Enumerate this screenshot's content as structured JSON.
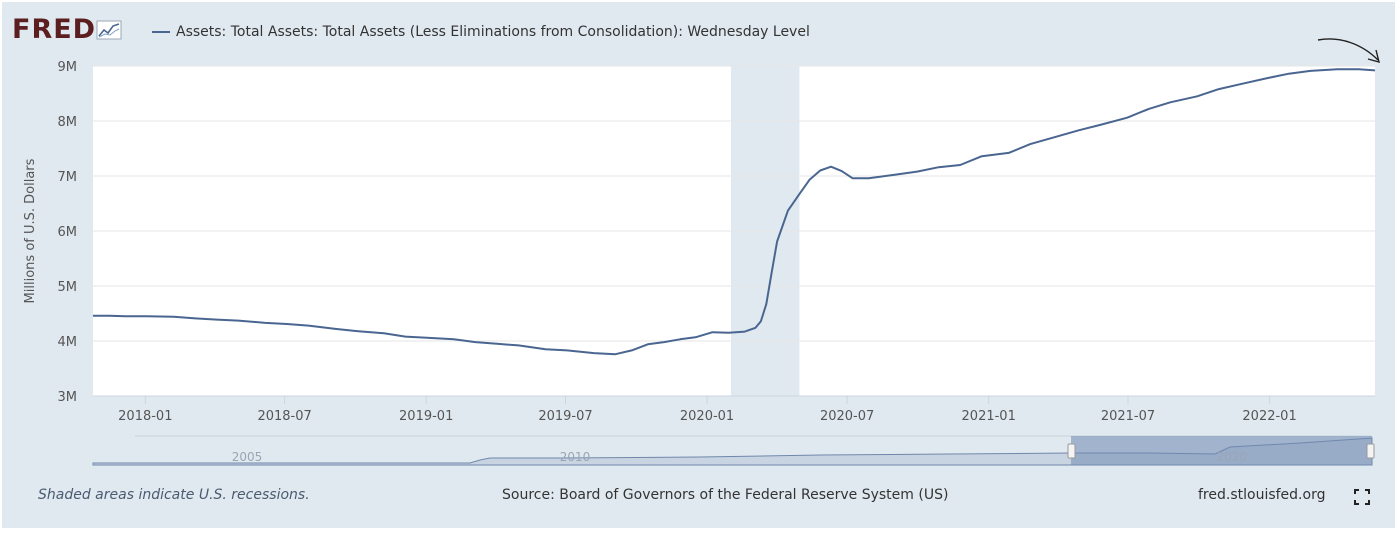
{
  "header": {
    "logo": "FRED",
    "series_title": "Assets: Total Assets: Total Assets (Less Eliminations from Consolidation): Wednesday Level"
  },
  "footer": {
    "note": "Shaded areas indicate U.S. recessions.",
    "source": "Source: Board of Governors of the Federal Reserve System (US)",
    "site": "fred.stlouisfed.org"
  },
  "icons": {
    "logo_chart": "line-chart-icon",
    "fullscreen": "expand-icon",
    "annotation": "hand-drawn-arrow"
  },
  "colors": {
    "line": "#4a6690",
    "recession": "#e1e9f0",
    "frame": "#e1e9f0",
    "logo": "#5b1f1f"
  },
  "chart_data": {
    "type": "line",
    "title": "",
    "ylabel": "Millions of U.S. Dollars",
    "xlabel": "",
    "ylim": [
      3,
      9
    ],
    "yunit": "M",
    "ytick_labels": [
      "3M",
      "4M",
      "5M",
      "6M",
      "7M",
      "8M",
      "9M"
    ],
    "yticks": [
      3,
      4,
      5,
      6,
      7,
      8,
      9
    ],
    "xrange": [
      "2017-10-25",
      "2022-05-18"
    ],
    "xticks": [
      "2018-01",
      "2018-07",
      "2019-01",
      "2019-07",
      "2020-01",
      "2020-07",
      "2021-01",
      "2021-07",
      "2022-01"
    ],
    "grid": true,
    "legend": "top-left",
    "recessions": [
      {
        "start": "2020-02-01",
        "end": "2020-04-30"
      }
    ],
    "series": [
      {
        "name": "Assets: Total Assets: Total Assets (Less Eliminations from Consolidation): Wednesday Level",
        "points": [
          [
            "2017-10-25",
            4.46
          ],
          [
            "2017-11-15",
            4.46
          ],
          [
            "2017-12-06",
            4.45
          ],
          [
            "2018-01-03",
            4.45
          ],
          [
            "2018-02-07",
            4.44
          ],
          [
            "2018-03-07",
            4.41
          ],
          [
            "2018-04-04",
            4.39
          ],
          [
            "2018-05-02",
            4.37
          ],
          [
            "2018-06-06",
            4.33
          ],
          [
            "2018-07-04",
            4.31
          ],
          [
            "2018-08-01",
            4.28
          ],
          [
            "2018-09-05",
            4.22
          ],
          [
            "2018-10-03",
            4.18
          ],
          [
            "2018-11-07",
            4.14
          ],
          [
            "2018-12-05",
            4.08
          ],
          [
            "2019-01-02",
            4.06
          ],
          [
            "2019-02-06",
            4.03
          ],
          [
            "2019-03-06",
            3.98
          ],
          [
            "2019-04-03",
            3.95
          ],
          [
            "2019-05-01",
            3.92
          ],
          [
            "2019-06-05",
            3.85
          ],
          [
            "2019-07-03",
            3.83
          ],
          [
            "2019-08-07",
            3.78
          ],
          [
            "2019-09-04",
            3.76
          ],
          [
            "2019-09-25",
            3.83
          ],
          [
            "2019-10-16",
            3.94
          ],
          [
            "2019-11-06",
            3.98
          ],
          [
            "2019-11-27",
            4.03
          ],
          [
            "2019-12-18",
            4.07
          ],
          [
            "2020-01-08",
            4.16
          ],
          [
            "2020-01-29",
            4.15
          ],
          [
            "2020-02-19",
            4.17
          ],
          [
            "2020-03-04",
            4.24
          ],
          [
            "2020-03-11",
            4.36
          ],
          [
            "2020-03-18",
            4.67
          ],
          [
            "2020-03-25",
            5.25
          ],
          [
            "2020-04-01",
            5.81
          ],
          [
            "2020-04-15",
            6.37
          ],
          [
            "2020-04-29",
            6.65
          ],
          [
            "2020-05-13",
            6.93
          ],
          [
            "2020-05-27",
            7.1
          ],
          [
            "2020-06-10",
            7.17
          ],
          [
            "2020-06-24",
            7.09
          ],
          [
            "2020-07-08",
            6.96
          ],
          [
            "2020-07-29",
            6.96
          ],
          [
            "2020-08-26",
            7.01
          ],
          [
            "2020-09-30",
            7.08
          ],
          [
            "2020-10-28",
            7.16
          ],
          [
            "2020-11-25",
            7.2
          ],
          [
            "2020-12-23",
            7.36
          ],
          [
            "2021-01-27",
            7.42
          ],
          [
            "2021-02-24",
            7.58
          ],
          [
            "2021-03-31",
            7.72
          ],
          [
            "2021-04-28",
            7.83
          ],
          [
            "2021-05-26",
            7.93
          ],
          [
            "2021-06-30",
            8.06
          ],
          [
            "2021-07-28",
            8.22
          ],
          [
            "2021-08-25",
            8.34
          ],
          [
            "2021-09-29",
            8.45
          ],
          [
            "2021-10-27",
            8.58
          ],
          [
            "2021-11-24",
            8.67
          ],
          [
            "2021-12-29",
            8.78
          ],
          [
            "2022-01-26",
            8.86
          ],
          [
            "2022-02-23",
            8.91
          ],
          [
            "2022-03-30",
            8.94
          ],
          [
            "2022-04-27",
            8.94
          ],
          [
            "2022-05-18",
            8.92
          ]
        ]
      }
    ],
    "navigator": {
      "labels": [
        "2005",
        "2010",
        "2020"
      ]
    }
  }
}
